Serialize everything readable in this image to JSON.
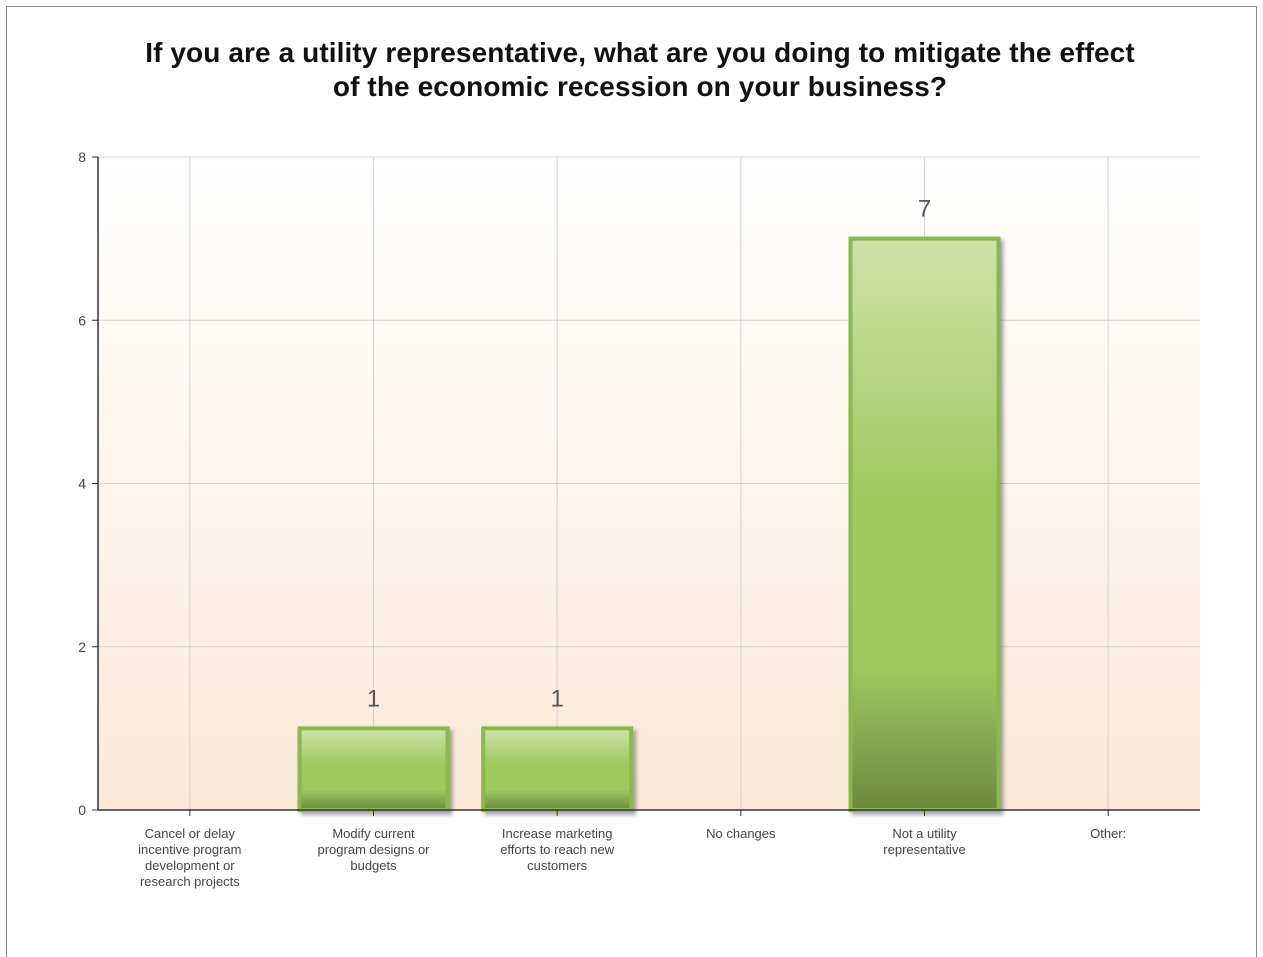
{
  "chart_data": {
    "type": "bar",
    "title": "If you are a utility representative, what are you doing to mitigate the effect of the economic recession on your business?",
    "title_lines": [
      "If you are a utility representative, what are you doing to mitigate the effect",
      "of the economic recession on your business?"
    ],
    "xlabel": "",
    "ylabel": "",
    "ylim": [
      0,
      8
    ],
    "yticks": [
      "0",
      "2",
      "4",
      "6",
      "8"
    ],
    "grid": true,
    "categories": [
      "Cancel or delay incentive program development or research projects",
      "Modify current program designs or budgets",
      "Increase marketing efforts to reach new customers",
      "No changes",
      "Not a utility representative",
      "Other:"
    ],
    "category_lines": [
      [
        "Cancel or delay",
        "incentive program",
        "development or",
        "research projects"
      ],
      [
        "Modify current",
        "program designs or",
        "budgets"
      ],
      [
        "Increase marketing",
        "efforts to reach new",
        "customers"
      ],
      [
        "No changes"
      ],
      [
        "Not a utility",
        "representative"
      ],
      [
        "Other:"
      ]
    ],
    "values": [
      0,
      1,
      1,
      0,
      7,
      0
    ],
    "data_labels": [
      "",
      "1",
      "1",
      "",
      "7",
      ""
    ],
    "colors": {
      "bar_top": "#cde3a8",
      "bar_mid": "#9dc95f",
      "bar_bottom": "#6a8a3e",
      "bar_border": "#8ab84f",
      "bg_top": "#ffffff",
      "bg_bottom": "#fbe9d6",
      "grid": "#d4d4d4",
      "axis": "#333333"
    }
  }
}
